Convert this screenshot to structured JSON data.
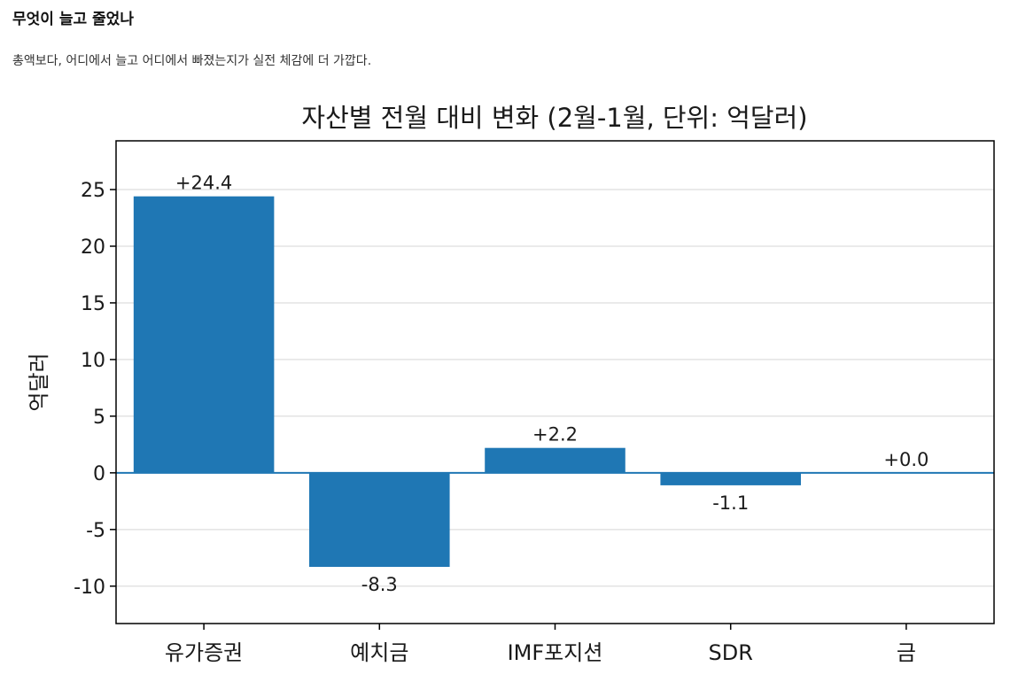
{
  "header": {
    "title": "무엇이 늘고 줄었나",
    "subtitle": "총액보다, 어디에서 늘고 어디에서 빠졌는지가 실전 체감에 더 가깝다."
  },
  "chart_data": {
    "type": "bar",
    "title": "자산별 전월 대비 변화 (2월-1월, 단위: 억달러)",
    "xlabel": "",
    "ylabel": "억달러",
    "categories": [
      "유가증권",
      "예치금",
      "IMF포지션",
      "SDR",
      "금"
    ],
    "values": [
      24.4,
      -8.3,
      2.2,
      -1.1,
      0.0
    ],
    "value_labels": [
      "+24.4",
      "-8.3",
      "+2.2",
      "-1.1",
      "+0.0"
    ],
    "ylim": [
      -13.3,
      29.3
    ],
    "yticks": [
      -10,
      -5,
      0,
      5,
      10,
      15,
      20,
      25
    ],
    "ytick_labels": [
      "-10",
      "-5",
      "0",
      "5",
      "10",
      "15",
      "20",
      "25"
    ],
    "grid": true,
    "bar_color": "#1f77b4",
    "zero_line_color": "#1f77b4"
  }
}
